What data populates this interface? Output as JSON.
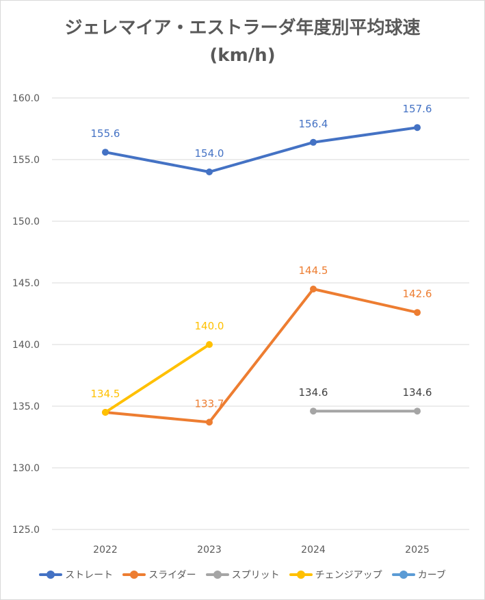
{
  "chart_data": {
    "type": "line",
    "title": "ジェレマイア・エストラーダ年度別平均球速",
    "subtitle": "(km/h)",
    "categories": [
      "2022",
      "2023",
      "2024",
      "2025"
    ],
    "ylim": [
      125.0,
      160.0
    ],
    "yticks": [
      "125.0",
      "130.0",
      "135.0",
      "140.0",
      "145.0",
      "150.0",
      "155.0",
      "160.0"
    ],
    "grid": true,
    "legend_position": "bottom",
    "series": [
      {
        "name": "ストレート",
        "color": "#4472c4",
        "label_color": "#4472c4",
        "values": [
          155.6,
          154.0,
          156.4,
          157.6
        ],
        "labels": [
          "155.6",
          "154.0",
          "156.4",
          "157.6"
        ]
      },
      {
        "name": "スライダー",
        "color": "#ed7d31",
        "label_color": "#ed7d31",
        "values": [
          134.5,
          133.7,
          144.5,
          142.6
        ],
        "labels": [
          "",
          "133.7",
          "144.5",
          "142.6"
        ]
      },
      {
        "name": "スプリット",
        "color": "#a5a5a5",
        "label_color": "#404040",
        "values": [
          null,
          null,
          134.6,
          134.6
        ],
        "labels": [
          "",
          "",
          "134.6",
          "134.6"
        ]
      },
      {
        "name": "チェンジアップ",
        "color": "#ffc000",
        "label_color": "#ffc000",
        "values": [
          134.5,
          140.0,
          null,
          null
        ],
        "labels": [
          "134.5",
          "140.0",
          "",
          ""
        ]
      },
      {
        "name": "カーブ",
        "color": "#5b9bd5",
        "label_color": "#5b9bd5",
        "values": [
          null,
          null,
          null,
          null
        ],
        "labels": [
          "",
          "",
          "",
          ""
        ]
      }
    ]
  }
}
